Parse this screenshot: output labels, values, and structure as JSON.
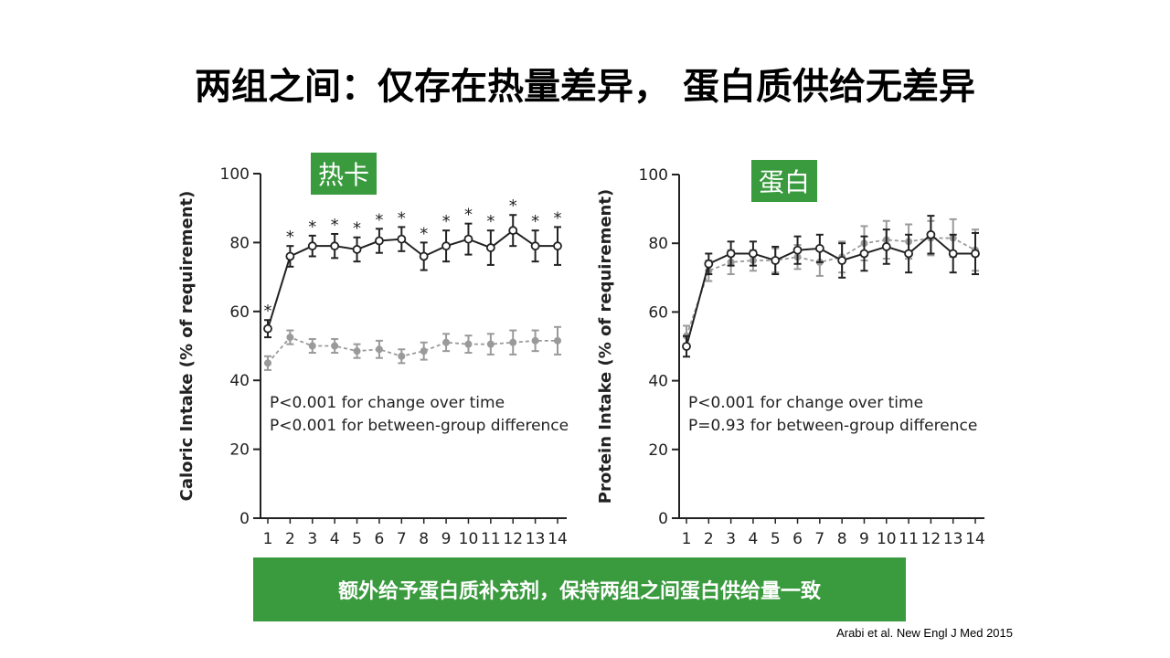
{
  "title": "两组之间：仅存在热量差异， 蛋白质供给无差异",
  "banner": "额外给予蛋白质补充剂，保持两组之间蛋白供给量一致",
  "citation": "Arabi et al. New Engl J Med 2015",
  "colors": {
    "accent": "#3a9a3e",
    "series_dark": "#222222",
    "series_gray": "#9a9a9a"
  },
  "chart_data": [
    {
      "type": "line",
      "tag": "热卡",
      "ylabel": "Caloric Intake (% of requirement)",
      "ylim": [
        0,
        100
      ],
      "yticks": [
        0,
        20,
        40,
        60,
        80,
        100
      ],
      "x": [
        1,
        2,
        3,
        4,
        5,
        6,
        7,
        8,
        9,
        10,
        11,
        12,
        13,
        14
      ],
      "annotations": [
        "P<0.001 for change over time",
        "P<0.001 for between-group difference"
      ],
      "significance_marker": "*",
      "series": [
        {
          "style": "solid-open-circle",
          "values": [
            55,
            76,
            79,
            79,
            78,
            80.5,
            81,
            76,
            79,
            81,
            78.5,
            83.5,
            79,
            79
          ],
          "error": [
            2.5,
            3,
            3,
            3.5,
            3.5,
            3.5,
            3.5,
            4,
            4.5,
            4.5,
            5,
            4.5,
            4.5,
            5.5
          ],
          "significant": [
            true,
            true,
            true,
            true,
            true,
            true,
            true,
            true,
            true,
            true,
            true,
            true,
            true,
            true
          ]
        },
        {
          "style": "dashed-filled-gray",
          "values": [
            45,
            52.5,
            50,
            50,
            48.5,
            49,
            47,
            48.5,
            51,
            50.5,
            50.5,
            51,
            51.5,
            51.5
          ],
          "error": [
            2,
            2,
            2,
            2,
            2,
            2.5,
            2,
            2.5,
            2.5,
            2.5,
            3,
            3.5,
            3,
            4
          ]
        }
      ]
    },
    {
      "type": "line",
      "tag": "蛋白",
      "ylabel": "Protein Intake (% of requirement)",
      "ylim": [
        0,
        100
      ],
      "yticks": [
        0,
        20,
        40,
        60,
        80,
        100
      ],
      "x": [
        1,
        2,
        3,
        4,
        5,
        6,
        7,
        8,
        9,
        10,
        11,
        12,
        13,
        14
      ],
      "annotations": [
        "P<0.001 for change over time",
        "P=0.93 for between-group difference"
      ],
      "series": [
        {
          "style": "solid-open-circle",
          "values": [
            50,
            74,
            77,
            77,
            75,
            78,
            78.5,
            75,
            77,
            79,
            77,
            82.5,
            77,
            77
          ],
          "error": [
            3,
            3,
            3.5,
            3.5,
            4,
            4,
            4,
            5,
            5,
            5,
            5.5,
            5.5,
            5.5,
            6
          ],
          "significant": []
        },
        {
          "style": "dashed-filled-gray",
          "values": [
            53,
            72,
            74.5,
            75,
            75,
            76,
            74.5,
            76,
            80,
            81,
            80.5,
            81.5,
            81.5,
            78
          ],
          "error": [
            3,
            3,
            3.5,
            3,
            3.5,
            3.5,
            4,
            4.5,
            5,
            5.5,
            5,
            5,
            5.5,
            6
          ]
        }
      ]
    }
  ]
}
